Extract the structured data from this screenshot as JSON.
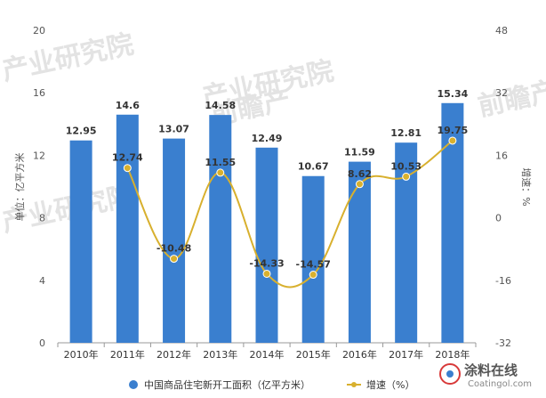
{
  "chart_data": {
    "type": "bar",
    "categories": [
      "2010年",
      "2011年",
      "2012年",
      "2013年",
      "2014年",
      "2015年",
      "2016年",
      "2017年",
      "2018年"
    ],
    "series": [
      {
        "name": "中国商品住宅新开工面积（亿平方米）",
        "type": "bar",
        "axis": "left",
        "values": [
          12.95,
          14.6,
          13.07,
          14.58,
          12.49,
          10.67,
          11.59,
          12.81,
          15.34
        ],
        "color": "#3a7fcf"
      },
      {
        "name": "增速（%）",
        "type": "line",
        "axis": "right",
        "values": [
          null,
          12.74,
          -10.48,
          11.55,
          -14.33,
          -14.57,
          8.62,
          10.53,
          19.75
        ],
        "color": "#d8b02e"
      }
    ],
    "y_left": {
      "label": "单位：亿平方米",
      "ylim": [
        0,
        20
      ],
      "ticks": [
        0,
        4,
        8,
        12,
        16,
        20
      ]
    },
    "y_right": {
      "label": "增速：%",
      "ylim": [
        -32,
        48
      ],
      "ticks": [
        -32,
        -16,
        0,
        16,
        32,
        48
      ]
    },
    "legend_position": "bottom-center",
    "grid": false
  },
  "watermark": {
    "site_cn": "涂料在线",
    "site_url": "Coatingol.com",
    "ghost_1": "产业研究院",
    "ghost_2": "前瞻产"
  }
}
